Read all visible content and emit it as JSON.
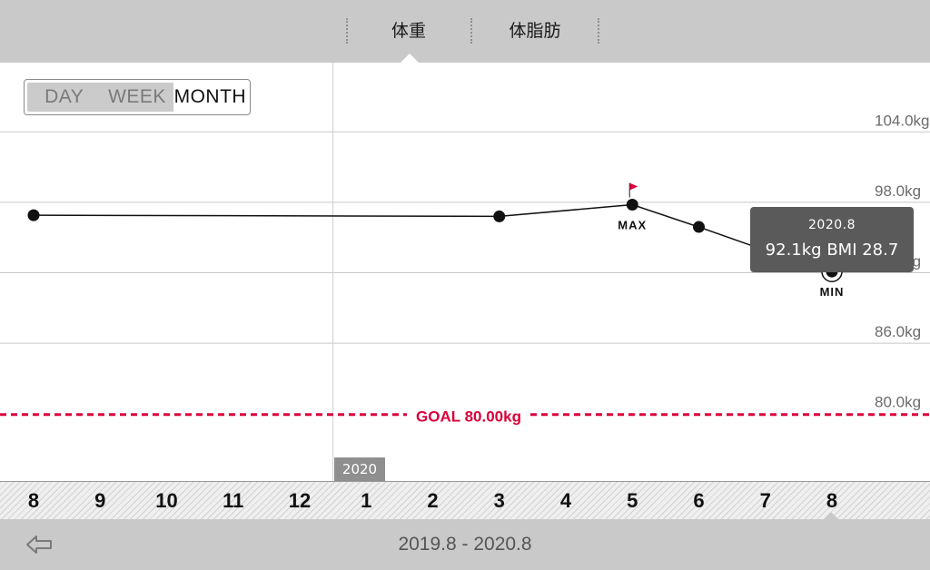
{
  "tabs": [
    {
      "label": "体重",
      "active": true
    },
    {
      "label": "体脂肪",
      "active": false
    }
  ],
  "range_toggle": {
    "options": [
      "DAY",
      "WEEK",
      "MONTH"
    ],
    "selected": "MONTH"
  },
  "tooltip": {
    "date": "2020.8",
    "values": "92.1kg  BMI 28.7"
  },
  "year_marker": "2020",
  "footer": {
    "date_range": "2019.8 - 2020.8",
    "back_icon": "back-arrow-icon"
  },
  "colors": {
    "header_gray": "#c9c9c9",
    "goal_red": "#d9003a",
    "flag_red": "#d9003a",
    "line": "#111111",
    "grid": "#c8c8c8",
    "tooltip_bg": "#5a5a5a"
  },
  "chart_data": {
    "type": "line",
    "x": [
      "8",
      "9",
      "10",
      "11",
      "12",
      "1",
      "2",
      "3",
      "4",
      "5",
      "6",
      "7",
      "8"
    ],
    "points": [
      {
        "index": 0,
        "value": 96.9
      },
      {
        "index": 7,
        "value": 96.8
      },
      {
        "index": 9,
        "value": 97.8
      },
      {
        "index": 10,
        "value": 95.9
      },
      {
        "index": 11,
        "value": 93.9
      },
      {
        "index": 12,
        "value": 92.1
      }
    ],
    "y_ticks": [
      {
        "value": 104,
        "label": "104.0kg"
      },
      {
        "value": 98,
        "label": "98.0kg"
      },
      {
        "value": 92,
        "label": "92.0kg"
      },
      {
        "value": 86,
        "label": "86.0kg"
      },
      {
        "value": 80,
        "label": "80.0kg"
      }
    ],
    "ylim": [
      74.1,
      109.9
    ],
    "goal": {
      "value": 80.0,
      "label": "GOAL 80.00kg"
    },
    "max_label": "MAX",
    "min_label": "MIN",
    "max_index": 9,
    "min_index": 12,
    "selected_index": 12,
    "year_boundary_index": 5,
    "grid": true
  }
}
